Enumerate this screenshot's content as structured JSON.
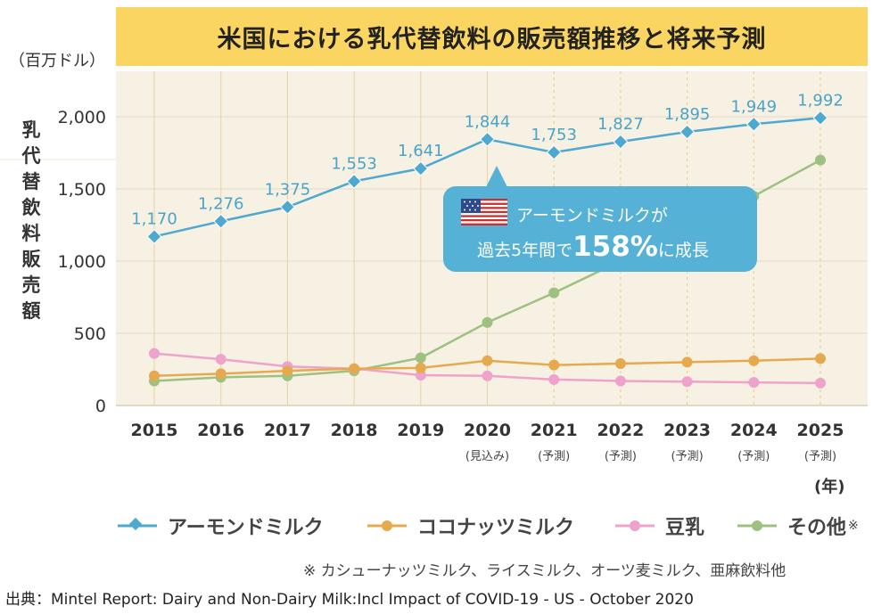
{
  "title": "米国における乳代替飲料の販売額推移と将来予測",
  "unit_label": "（百万ドル）",
  "chart_data": {
    "type": "line",
    "title": "米国における乳代替飲料の販売額推移と将来予測",
    "ylabel": "乳代替飲料販売額",
    "xlabel": "(年)",
    "ylim": [
      0,
      2000
    ],
    "yticks": [
      "0",
      "500",
      "1,000",
      "1,500",
      "2,000"
    ],
    "categories": [
      "2015",
      "2016",
      "2017",
      "2018",
      "2019",
      "2020",
      "2021",
      "2022",
      "2023",
      "2024",
      "2025"
    ],
    "category_sublabels": [
      "",
      "",
      "",
      "",
      "",
      "(見込み)",
      "(予測)",
      "(予測)",
      "(予測)",
      "(予測)",
      "(予測)"
    ],
    "forecast_start_index": 5,
    "grid": true,
    "legend_position": "bottom",
    "series": [
      {
        "name": "アーモンドミルク",
        "color": "#4ea8cf",
        "values": [
          1170,
          1276,
          1375,
          1553,
          1641,
          1844,
          1753,
          1827,
          1895,
          1949,
          1992
        ],
        "labels": [
          "1,170",
          "1,276",
          "1,375",
          "1,553",
          "1,641",
          "1,844",
          "1,753",
          "1,827",
          "1,895",
          "1,949",
          "1,992"
        ]
      },
      {
        "name": "ココナッツミルク",
        "color": "#e6a94e",
        "values": [
          205,
          220,
          240,
          255,
          260,
          310,
          280,
          290,
          300,
          310,
          325
        ]
      },
      {
        "name": "豆乳",
        "color": "#eea2cc",
        "values": [
          360,
          320,
          270,
          255,
          210,
          205,
          180,
          170,
          165,
          160,
          155
        ]
      },
      {
        "name": "その他",
        "color": "#9ec182",
        "values": [
          170,
          195,
          205,
          240,
          330,
          575,
          780,
          1000,
          1230,
          1450,
          1700
        ]
      }
    ]
  },
  "callout": {
    "line1": "アーモンドミルクが",
    "line2_pre": "過去5年間で",
    "line2_big": "158%",
    "line2_post": "に成長"
  },
  "legend_note_mark": "※",
  "footnote": "※ カシューナッツミルク、ライスミルク、オーツ麦ミルク、亜麻飲料他",
  "source": "出典：Mintel Report: Dairy and Non-Dairy Milk:Incl Impact of COVID-19 - US - October 2020",
  "colors": {
    "title_band": "#fbd562",
    "plot_bg": "#f7f1e4",
    "callout": "#56b1d6"
  }
}
